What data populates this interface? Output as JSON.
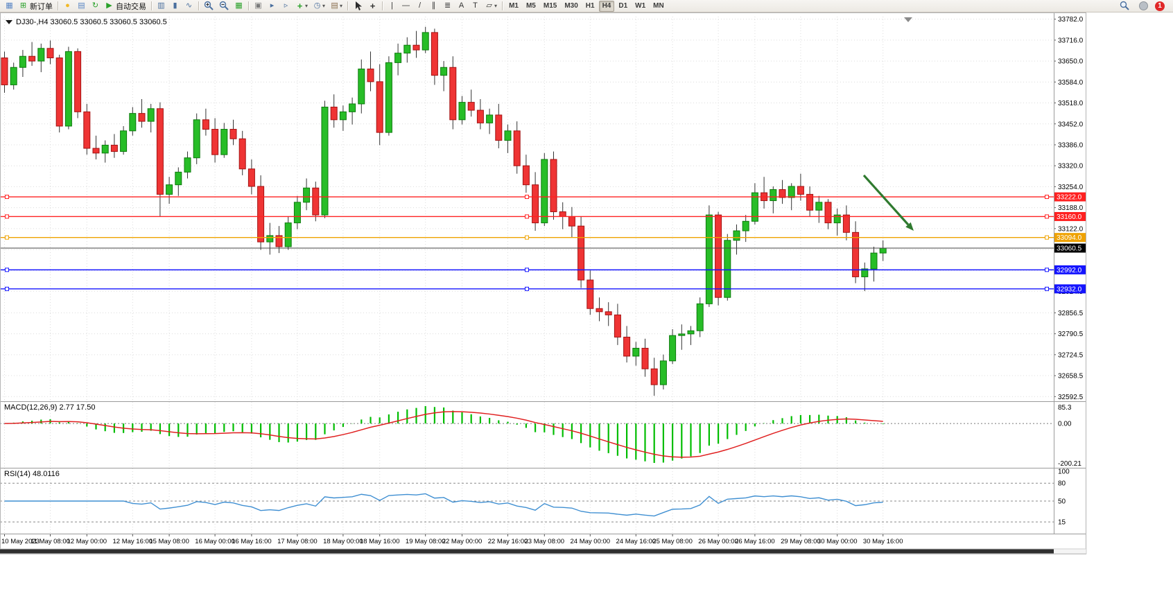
{
  "toolbar": {
    "groups": [
      {
        "items": [
          {
            "name": "new-chart-icon",
            "glyph": "▦",
            "color": "#5a86c5"
          },
          {
            "name": "new-order-button",
            "label": "新订单",
            "glyph": "⊞",
            "color": "#2aa12a"
          }
        ]
      },
      {
        "items": [
          {
            "name": "lightbulb-icon",
            "glyph": "●",
            "color": "#f2b824"
          },
          {
            "name": "market-depth-icon",
            "glyph": "▤",
            "color": "#5a86c5"
          },
          {
            "name": "refresh-icon",
            "glyph": "↻",
            "color": "#2aa12a"
          },
          {
            "name": "autotrade-button",
            "label": "自动交易",
            "glyph": "▶",
            "color": "#2aa12a"
          }
        ]
      },
      {
        "items": [
          {
            "name": "bar-chart-icon",
            "glyph": "▥",
            "color": "#4a6f9e"
          },
          {
            "name": "candlestick-chart-icon",
            "glyph": "▮",
            "color": "#4a6f9e"
          },
          {
            "name": "line-chart-icon",
            "glyph": "∿",
            "color": "#4a6f9e"
          }
        ]
      },
      {
        "items": [
          {
            "name": "zoom-in-icon",
            "svg": "magnifier-plus"
          },
          {
            "name": "zoom-out-icon",
            "svg": "magnifier-minus"
          },
          {
            "name": "tile-windows-icon",
            "glyph": "▦",
            "color": "#2aa12a"
          }
        ]
      },
      {
        "items": [
          {
            "name": "auto-arrange-icon",
            "glyph": "▣",
            "color": "#7a7a7a"
          },
          {
            "name": "auto-scroll-icon",
            "glyph": "▸",
            "color": "#4a6f9e"
          },
          {
            "name": "chart-shift-icon",
            "glyph": "▹",
            "color": "#4a6f9e"
          },
          {
            "name": "indicators-icon",
            "glyph": "+",
            "color": "#2aa12a",
            "dropdown": true
          },
          {
            "name": "periods-icon",
            "glyph": "◷",
            "color": "#4a6f9e",
            "dropdown": true
          },
          {
            "name": "templates-icon",
            "glyph": "▤",
            "color": "#8a6f4e",
            "dropdown": true
          }
        ]
      },
      {
        "items": [
          {
            "name": "cursor-icon",
            "svg": "cursor"
          },
          {
            "name": "crosshair-icon",
            "glyph": "+",
            "color": "#333333"
          }
        ]
      },
      {
        "items": [
          {
            "name": "vertical-line-icon",
            "glyph": "|",
            "color": "#333333"
          },
          {
            "name": "horizontal-line-icon",
            "glyph": "—",
            "color": "#333333"
          },
          {
            "name": "trendline-icon",
            "glyph": "/",
            "color": "#333333"
          },
          {
            "name": "channel-icon",
            "glyph": "∥",
            "color": "#333333"
          },
          {
            "name": "fibonacci-icon",
            "glyph": "≣",
            "color": "#333333"
          },
          {
            "name": "text-icon",
            "glyph": "A",
            "color": "#333333"
          },
          {
            "name": "text-label-icon",
            "glyph": "T",
            "color": "#333333"
          },
          {
            "name": "shapes-icon",
            "glyph": "▱",
            "color": "#333333",
            "dropdown": true
          }
        ]
      }
    ],
    "timeframes": {
      "items": [
        "M1",
        "M5",
        "M15",
        "M30",
        "H1",
        "H4",
        "D1",
        "W1",
        "MN"
      ],
      "selected": "H4"
    },
    "right_icons": [
      {
        "name": "search-icon",
        "svg": "magnifier"
      },
      {
        "name": "community-icon",
        "circle": true
      },
      {
        "name": "notification-badge",
        "value": "1",
        "color": "#e02828"
      }
    ]
  },
  "chart": {
    "title": "DJ30-,H4 33060.5 33060.5 33060.5 33060.5",
    "symbol": "DJ30-",
    "timeframe": "H4",
    "price_axis": {
      "min": 32580,
      "max": 33790,
      "labels": [
        "33782.0",
        "33716.0",
        "33650.0",
        "33584.0",
        "33518.0",
        "33452.0",
        "33386.0",
        "33320.0",
        "33254.0",
        "33188.0",
        "33122.0",
        "33056.0",
        "32990.0",
        "32924.5",
        "32856.5",
        "32790.5",
        "32724.5",
        "32658.5",
        "32592.5"
      ]
    },
    "time_axis": {
      "labels": [
        "10 May 2023",
        "11 May 08:00",
        "12 May 00:00",
        "12 May 16:00",
        "15 May 08:00",
        "16 May 00:00",
        "16 May 16:00",
        "17 May 08:00",
        "18 May 00:00",
        "18 May 16:00",
        "19 May 08:00",
        "22 May 00:00",
        "22 May 16:00",
        "23 May 08:00",
        "24 May 00:00",
        "24 May 16:00",
        "25 May 08:00",
        "26 May 00:00",
        "26 May 16:00",
        "29 May 08:00",
        "30 May 00:00",
        "30 May 16:00"
      ]
    },
    "levels": [
      {
        "price": 33222.0,
        "label": "33222.0",
        "color": "#ff2020",
        "type": "resistance"
      },
      {
        "price": 33160.0,
        "label": "33160.0",
        "color": "#ff2020",
        "type": "resistance"
      },
      {
        "price": 33094.0,
        "label": "33094.0",
        "color": "#efa200",
        "type": "pivot"
      },
      {
        "price": 32992.0,
        "label": "32992.0",
        "color": "#1414ff",
        "type": "support"
      },
      {
        "price": 32932.0,
        "label": "32932.0",
        "color": "#1414ff",
        "type": "support"
      }
    ],
    "bid_line": {
      "price": 33060.5,
      "label": "33060.5",
      "color": "#000000"
    },
    "annotation_arrow": {
      "from_price": 33290,
      "to_price": 33115,
      "color": "#2f7a2f",
      "direction": "down-right"
    },
    "colors": {
      "up": "#27bd27",
      "up_border": "#0d7a0d",
      "down": "#ef3434",
      "down_border": "#a31212",
      "wick": "#333333",
      "grid": "#dcdcdc"
    }
  },
  "chart_data": {
    "type": "candlestick",
    "symbol": "DJ30-",
    "timeframe": "H4",
    "ohlc": [
      [
        33660,
        33680,
        33550,
        33575
      ],
      [
        33575,
        33645,
        33560,
        33630
      ],
      [
        33630,
        33685,
        33600,
        33665
      ],
      [
        33665,
        33710,
        33635,
        33650
      ],
      [
        33650,
        33705,
        33615,
        33690
      ],
      [
        33690,
        33715,
        33640,
        33660
      ],
      [
        33660,
        33670,
        33425,
        33445
      ],
      [
        33445,
        33695,
        33435,
        33680
      ],
      [
        33680,
        33690,
        33470,
        33490
      ],
      [
        33490,
        33515,
        33355,
        33375
      ],
      [
        33375,
        33415,
        33340,
        33360
      ],
      [
        33360,
        33400,
        33330,
        33385
      ],
      [
        33385,
        33420,
        33345,
        33365
      ],
      [
        33365,
        33445,
        33355,
        33430
      ],
      [
        33430,
        33505,
        33415,
        33485
      ],
      [
        33485,
        33530,
        33440,
        33460
      ],
      [
        33460,
        33515,
        33425,
        33500
      ],
      [
        33500,
        33520,
        33160,
        33230
      ],
      [
        33230,
        33285,
        33200,
        33260
      ],
      [
        33260,
        33315,
        33225,
        33300
      ],
      [
        33300,
        33365,
        33280,
        33345
      ],
      [
        33345,
        33485,
        33325,
        33465
      ],
      [
        33465,
        33500,
        33415,
        33435
      ],
      [
        33435,
        33470,
        33330,
        33355
      ],
      [
        33355,
        33455,
        33345,
        33435
      ],
      [
        33435,
        33465,
        33385,
        33405
      ],
      [
        33405,
        33430,
        33290,
        33310
      ],
      [
        33310,
        33340,
        33230,
        33255
      ],
      [
        33255,
        33290,
        33055,
        33080
      ],
      [
        33080,
        33140,
        33040,
        33100
      ],
      [
        33100,
        33130,
        33045,
        33065
      ],
      [
        33065,
        33160,
        33055,
        33140
      ],
      [
        33140,
        33225,
        33120,
        33205
      ],
      [
        33205,
        33280,
        33180,
        33250
      ],
      [
        33250,
        33270,
        33145,
        33165
      ],
      [
        33165,
        33525,
        33155,
        33505
      ],
      [
        33505,
        33545,
        33440,
        33465
      ],
      [
        33465,
        33510,
        33430,
        33490
      ],
      [
        33490,
        33535,
        33450,
        33515
      ],
      [
        33515,
        33655,
        33485,
        33625
      ],
      [
        33625,
        33680,
        33555,
        33585
      ],
      [
        33585,
        33640,
        33385,
        33425
      ],
      [
        33425,
        33665,
        33415,
        33645
      ],
      [
        33645,
        33705,
        33605,
        33675
      ],
      [
        33675,
        33725,
        33645,
        33700
      ],
      [
        33700,
        33745,
        33660,
        33685
      ],
      [
        33685,
        33758,
        33675,
        33740
      ],
      [
        33740,
        33752,
        33575,
        33605
      ],
      [
        33605,
        33650,
        33555,
        33630
      ],
      [
        33630,
        33665,
        33435,
        33465
      ],
      [
        33465,
        33540,
        33450,
        33520
      ],
      [
        33520,
        33560,
        33475,
        33495
      ],
      [
        33495,
        33530,
        33435,
        33455
      ],
      [
        33455,
        33500,
        33420,
        33480
      ],
      [
        33480,
        33515,
        33375,
        33400
      ],
      [
        33400,
        33450,
        33360,
        33430
      ],
      [
        33430,
        33460,
        33295,
        33320
      ],
      [
        33320,
        33355,
        33235,
        33260
      ],
      [
        33260,
        33300,
        33115,
        33140
      ],
      [
        33140,
        33360,
        33130,
        33340
      ],
      [
        33340,
        33365,
        33150,
        33175
      ],
      [
        33175,
        33205,
        33120,
        33160
      ],
      [
        33160,
        33190,
        33095,
        33130
      ],
      [
        33130,
        33160,
        32935,
        32960
      ],
      [
        32960,
        32990,
        32850,
        32870
      ],
      [
        32870,
        32905,
        32830,
        32860
      ],
      [
        32860,
        32890,
        32815,
        32850
      ],
      [
        32850,
        32885,
        32755,
        32780
      ],
      [
        32780,
        32815,
        32700,
        32720
      ],
      [
        32720,
        32765,
        32690,
        32745
      ],
      [
        32745,
        32775,
        32655,
        32680
      ],
      [
        32680,
        32715,
        32595,
        32630
      ],
      [
        32630,
        32725,
        32615,
        32705
      ],
      [
        32705,
        32805,
        32695,
        32785
      ],
      [
        32785,
        32820,
        32740,
        32790
      ],
      [
        32790,
        32815,
        32755,
        32800
      ],
      [
        32800,
        32905,
        32780,
        32885
      ],
      [
        32885,
        33195,
        32875,
        33165
      ],
      [
        33165,
        33175,
        32880,
        32905
      ],
      [
        32905,
        33105,
        32895,
        33085
      ],
      [
        33085,
        33135,
        33040,
        33115
      ],
      [
        33115,
        33165,
        33080,
        33145
      ],
      [
        33145,
        33265,
        33135,
        33235
      ],
      [
        33235,
        33285,
        33185,
        33210
      ],
      [
        33210,
        33255,
        33170,
        33245
      ],
      [
        33245,
        33275,
        33200,
        33220
      ],
      [
        33220,
        33265,
        33180,
        33255
      ],
      [
        33255,
        33295,
        33210,
        33230
      ],
      [
        33230,
        33255,
        33160,
        33180
      ],
      [
        33180,
        33225,
        33140,
        33205
      ],
      [
        33205,
        33215,
        33120,
        33140
      ],
      [
        33140,
        33185,
        33100,
        33165
      ],
      [
        33165,
        33195,
        33085,
        33110
      ],
      [
        33110,
        33145,
        32950,
        32970
      ],
      [
        32970,
        33015,
        32925,
        32995
      ],
      [
        32995,
        33065,
        32955,
        33045
      ],
      [
        33045,
        33085,
        33020,
        33060.5
      ]
    ]
  },
  "macd": {
    "label": "MACD(12,26,9) 2.77 17.50",
    "params": [
      12,
      26,
      9
    ],
    "current_values": [
      "2.77",
      "17.50"
    ],
    "scale_labels": {
      "top": "85.3",
      "zero": "0.00",
      "bottom": "-200.21"
    },
    "histogram_color": "#00bd00",
    "signal_color": "#e02020"
  },
  "rsi": {
    "label": "RSI(14) 48.0116",
    "period": 14,
    "current_value": "48.0116",
    "levels": [
      80,
      50,
      15
    ],
    "scale_labels": [
      "100",
      "80",
      "50",
      "15"
    ],
    "line_color": "#3f8fd2"
  },
  "scrollbar": {
    "thumb_ratio": 0.97
  }
}
